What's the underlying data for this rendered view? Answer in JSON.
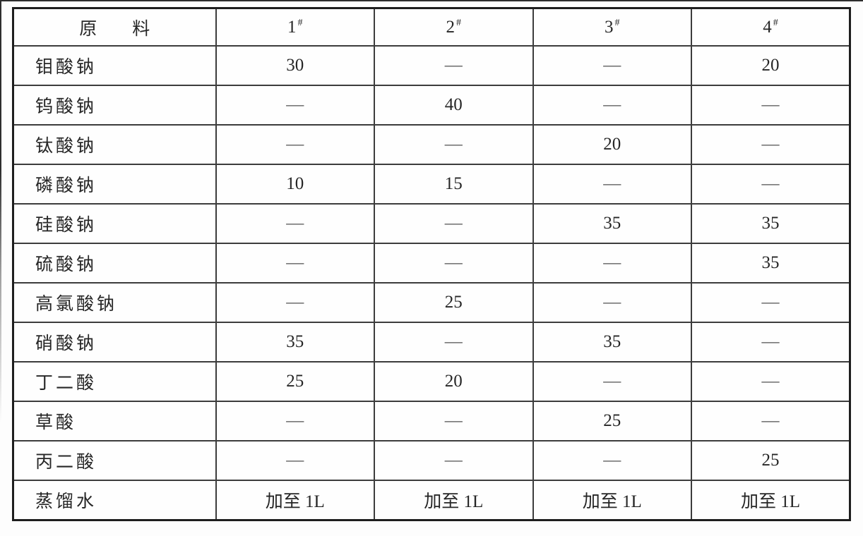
{
  "table": {
    "header": {
      "material_label": "原　　料",
      "columns": [
        {
          "base": "1",
          "sup": "#"
        },
        {
          "base": "2",
          "sup": "#"
        },
        {
          "base": "3",
          "sup": "#"
        },
        {
          "base": "4",
          "sup": "#"
        }
      ]
    },
    "rows": [
      {
        "material": "钼酸钠",
        "values": [
          "30",
          "—",
          "—",
          "20"
        ]
      },
      {
        "material": "钨酸钠",
        "values": [
          "—",
          "40",
          "—",
          "—"
        ]
      },
      {
        "material": "钛酸钠",
        "values": [
          "—",
          "—",
          "20",
          "—"
        ]
      },
      {
        "material": "磷酸钠",
        "values": [
          "10",
          "15",
          "—",
          "—"
        ]
      },
      {
        "material": "硅酸钠",
        "values": [
          "—",
          "—",
          "35",
          "35"
        ]
      },
      {
        "material": "硫酸钠",
        "values": [
          "—",
          "—",
          "—",
          "35"
        ]
      },
      {
        "material": "高氯酸钠",
        "values": [
          "—",
          "25",
          "—",
          "—"
        ]
      },
      {
        "material": "硝酸钠",
        "values": [
          "35",
          "—",
          "35",
          "—"
        ]
      },
      {
        "material": "丁二酸",
        "values": [
          "25",
          "20",
          "—",
          "—"
        ]
      },
      {
        "material": "草酸",
        "values": [
          "—",
          "—",
          "25",
          "—"
        ]
      },
      {
        "material": "丙二酸",
        "values": [
          "—",
          "—",
          "—",
          "25"
        ]
      },
      {
        "material": "蒸馏水",
        "values": [
          "加至 1L",
          "加至 1L",
          "加至 1L",
          "加至 1L"
        ]
      }
    ],
    "colors": {
      "border_outer": "#1e1e1e",
      "border_inner": "#3c3c3c",
      "text": "#262626",
      "dash": "#505050",
      "background": "#fdfdfd"
    }
  }
}
